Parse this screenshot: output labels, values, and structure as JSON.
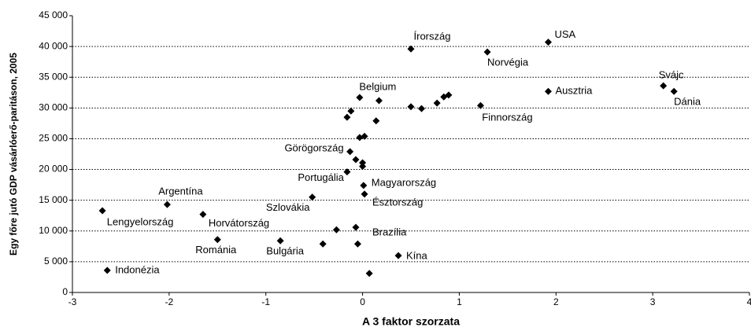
{
  "chart_data": {
    "type": "scatter",
    "x_label": "A 3 faktor szorzata",
    "y_label": "Egy főre jutó GDP vásárlóerő-paritáson, 2005",
    "x": [
      -2.64,
      -2.69,
      -2.02,
      -1.65,
      -1.5,
      -0.85,
      -0.41,
      -0.27,
      -0.05,
      -0.07,
      0.07,
      0.37,
      -0.52,
      0.02,
      0.01,
      -0.16,
      0,
      0,
      -0.07,
      -0.13,
      -0.03,
      0.02,
      -0.16,
      -0.12,
      -0.03,
      0.17,
      0.14,
      0.5,
      0.61,
      0.77,
      0.84,
      1.22,
      0.5,
      1.29,
      1.92,
      1.92,
      3.11,
      3.22,
      0.89
    ],
    "y": [
      3600,
      13300,
      14300,
      12700,
      8600,
      8400,
      7900,
      10200,
      7900,
      10600,
      3100,
      6000,
      15500,
      16000,
      17400,
      19600,
      21100,
      20500,
      21600,
      22900,
      25200,
      25400,
      28500,
      29500,
      31700,
      31200,
      27900,
      30200,
      29900,
      30800,
      31800,
      30400,
      39600,
      39100,
      40700,
      32700,
      33600,
      32700,
      32100
    ],
    "labels": [
      "Indonézia",
      "Lengyelország",
      "Argentína",
      "Horvátország",
      "Románia",
      "Bulgária",
      null,
      null,
      null,
      "Brazília",
      null,
      "Kína",
      "Szlovákia",
      "Észtország",
      "Magyarország",
      "Portugália",
      null,
      null,
      null,
      "Görögország",
      null,
      null,
      null,
      null,
      "Belgium",
      null,
      null,
      null,
      null,
      null,
      null,
      "Finnország",
      "Írország",
      "Norvégia",
      "USA",
      "Ausztria",
      "Svájc",
      "Dánia",
      null
    ],
    "color": "#000000",
    "xlim": [
      -3,
      4
    ],
    "xticks": [
      -3,
      -2,
      -1,
      0,
      1,
      2,
      3,
      4
    ],
    "ylim": [
      0,
      45000
    ],
    "yticks": [
      0,
      {
        "value": 5000,
        "label": "5 000"
      },
      {
        "value": 10000,
        "label": "10 000"
      },
      {
        "value": 15000,
        "label": "15 000"
      },
      {
        "value": 20000,
        "label": "20 000"
      },
      {
        "value": 25000,
        "label": "25 000"
      },
      {
        "value": 30000,
        "label": "30 000"
      },
      {
        "value": 35000,
        "label": "35 000"
      },
      {
        "value": 40000,
        "label": "40 000"
      },
      {
        "value": 45000,
        "label": "45 000"
      }
    ],
    "grid": true
  }
}
